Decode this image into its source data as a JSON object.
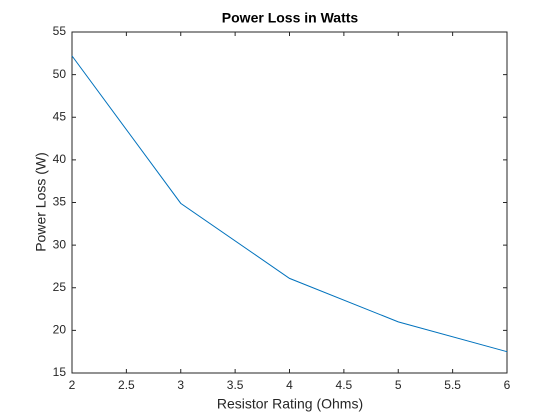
{
  "chart_data": {
    "type": "line",
    "title": "Power Loss in Watts",
    "x_label": "Resistor Rating (Ohms)",
    "y_label": "Power Loss (W)",
    "x": [
      2,
      3,
      4,
      5,
      6
    ],
    "series": [
      {
        "name": "Power Loss",
        "color": "#0072bd",
        "values": [
          52.2,
          34.9,
          26.1,
          21.0,
          17.5
        ]
      }
    ],
    "xlim": [
      2,
      6
    ],
    "xticks": [
      2,
      2.5,
      3,
      3.5,
      4,
      4.5,
      5,
      5.5,
      6
    ],
    "ylim": [
      15,
      55
    ],
    "yticks": [
      15,
      20,
      25,
      30,
      35,
      40,
      45,
      50,
      55
    ],
    "grid": false
  }
}
